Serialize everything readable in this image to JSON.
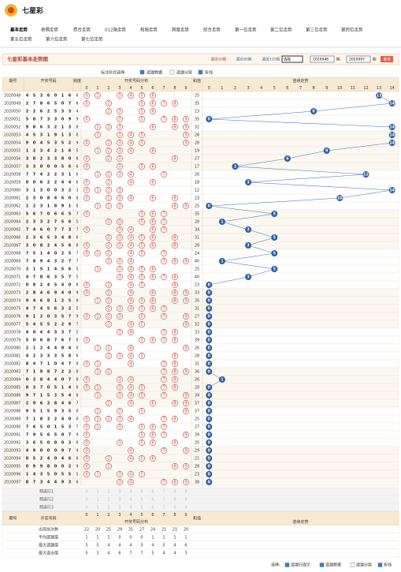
{
  "header": {
    "title": "七星彩"
  },
  "nav": [
    "基本走势",
    "奇偶走势",
    "质合走势",
    "012路走势",
    "和值走势",
    "跨度走势",
    "综合走势",
    "第一位走势",
    "第二位走势",
    "第三位走势",
    "第四位走势",
    "第五位走势",
    "第六位走势",
    "第七位走势"
  ],
  "toolbar": {
    "title": "七星彩基本走势图",
    "recent": [
      "最近50期",
      "最近80期",
      "最近120期"
    ],
    "select": "选择",
    "from": "2020048",
    "from_unit": "期",
    "to": "2020097",
    "to_unit": "期",
    "query": "查询"
  },
  "options": {
    "label": "标注形式选择:",
    "items": [
      "遗漏数据",
      "遗漏分层",
      "折线"
    ]
  },
  "table": {
    "headers": {
      "issue": "期号",
      "nums": "开奖号码",
      "span": "跨度",
      "dist": "开奖号码分布",
      "sum": "和值",
      "trend": "连续走势"
    },
    "digits": [
      0,
      1,
      2,
      3,
      4,
      5,
      6,
      7,
      8,
      9
    ],
    "trend_cols": [
      0,
      1,
      2,
      3,
      4,
      5,
      6,
      7,
      8,
      9,
      10,
      11,
      12,
      13,
      14
    ],
    "rows": [
      {
        "issue": "2020048",
        "nums": [
          4,
          5,
          3,
          6,
          0,
          1,
          6
        ],
        "span": 6,
        "sum": 25,
        "trend": 13
      },
      {
        "issue": "2020049",
        "nums": [
          2,
          7,
          8,
          6,
          5,
          0,
          7
        ],
        "span": 8,
        "sum": 35,
        "trend": 14
      },
      {
        "issue": "2020050",
        "nums": [
          2,
          2,
          6,
          2,
          5,
          3,
          3
        ],
        "span": 4,
        "sum": 23,
        "trend": 8
      },
      {
        "issue": "2020051",
        "nums": [
          5,
          8,
          7,
          3,
          3,
          0,
          9
        ],
        "span": 9,
        "sum": 35,
        "trend": 0
      },
      {
        "issue": "2020052",
        "nums": [
          9,
          8,
          6,
          3,
          2,
          1,
          3
        ],
        "span": 8,
        "sum": 32,
        "trend": 14
      },
      {
        "issue": "2020053",
        "nums": [
          4,
          5,
          3,
          1,
          9,
          1,
          3
        ],
        "span": 8,
        "sum": 26,
        "trend": 14
      },
      {
        "issue": "2020054",
        "nums": [
          9,
          0,
          4,
          5,
          3,
          5,
          2
        ],
        "span": 9,
        "sum": 28,
        "trend": 14
      },
      {
        "issue": "2020055",
        "nums": [
          1,
          2,
          3,
          4,
          2,
          1,
          6
        ],
        "span": 5,
        "sum": 19,
        "trend": 9
      },
      {
        "issue": "2020056",
        "nums": [
          3,
          8,
          2,
          3,
          3,
          8,
          0
        ],
        "span": 8,
        "sum": 27,
        "trend": 6
      },
      {
        "issue": "2020057",
        "nums": [
          3,
          3,
          0,
          0,
          0,
          5,
          6
        ],
        "span": 6,
        "sum": 17,
        "trend": 2
      },
      {
        "issue": "2020058",
        "nums": [
          7,
          7,
          4,
          2,
          2,
          3,
          1
        ],
        "span": 6,
        "sum": 26,
        "trend": 12
      },
      {
        "issue": "2020059",
        "nums": [
          0,
          0,
          6,
          2,
          2,
          4,
          4
        ],
        "span": 6,
        "sum": 18,
        "trend": 3
      },
      {
        "issue": "2020060",
        "nums": [
          3,
          1,
          3,
          0,
          0,
          3,
          2
        ],
        "span": 3,
        "sum": 12,
        "trend": 14
      },
      {
        "issue": "2020061",
        "nums": [
          2,
          3,
          0,
          8,
          4,
          6,
          0
        ],
        "span": 8,
        "sum": 23,
        "trend": 10
      },
      {
        "issue": "2020062",
        "nums": [
          1,
          2,
          3,
          1,
          8,
          9,
          1
        ],
        "span": 8,
        "sum": 25,
        "trend": 0
      },
      {
        "issue": "2020063",
        "nums": [
          5,
          6,
          7,
          0,
          6,
          6,
          5
        ],
        "span": 7,
        "sum": 35,
        "trend": 5
      },
      {
        "issue": "2020064",
        "nums": [
          2,
          3,
          3,
          2,
          7,
          5,
          6
        ],
        "span": 5,
        "sum": 28,
        "trend": 1
      },
      {
        "issue": "2020065",
        "nums": [
          7,
          4,
          6,
          0,
          7,
          7,
          3
        ],
        "span": 7,
        "sum": 34,
        "trend": 3
      },
      {
        "issue": "2020066",
        "nums": [
          2,
          3,
          6,
          5,
          3,
          4,
          8
        ],
        "span": 6,
        "sum": 31,
        "trend": 5
      },
      {
        "issue": "2020067",
        "nums": [
          3,
          0,
          8,
          2,
          4,
          5,
          6
        ],
        "span": 8,
        "sum": 28,
        "trend": 3
      },
      {
        "issue": "2020068",
        "nums": [
          7,
          5,
          1,
          4,
          0,
          2,
          5
        ],
        "span": 7,
        "sum": 24,
        "trend": 5
      },
      {
        "issue": "2020069",
        "nums": [
          7,
          8,
          9,
          4,
          3,
          2,
          7
        ],
        "span": 7,
        "sum": 40,
        "trend": 1
      },
      {
        "issue": "2020070",
        "nums": [
          3,
          1,
          5,
          1,
          4,
          5,
          6
        ],
        "span": 5,
        "sum": 25,
        "trend": 5
      },
      {
        "issue": "2020071",
        "nums": [
          4,
          7,
          8,
          6,
          3,
          5,
          7
        ],
        "span": 5,
        "sum": 40,
        "trend": 3
      },
      {
        "issue": "2020072",
        "nums": [
          0,
          8,
          2,
          4,
          5,
          4,
          0
        ],
        "span": 8,
        "sum": 23,
        "trend": 0
      },
      {
        "issue": "2020073",
        "nums": [
          2,
          8,
          4,
          6,
          9,
          4,
          0
        ],
        "span": 9,
        "sum": 33,
        "trend": 0
      },
      {
        "issue": "2020074",
        "nums": [
          9,
          4,
          6,
          8,
          1,
          2,
          5
        ],
        "span": 8,
        "sum": 35,
        "trend": 0
      },
      {
        "issue": "2020075",
        "nums": [
          4,
          7,
          4,
          5,
          6,
          3,
          2
        ],
        "span": 5,
        "sum": 31,
        "trend": 0
      },
      {
        "issue": "2020076",
        "nums": [
          9,
          1,
          2,
          0,
          3,
          5,
          7
        ],
        "span": 9,
        "sum": 27,
        "trend": 0
      },
      {
        "issue": "2020077",
        "nums": [
          5,
          4,
          5,
          5,
          2,
          2,
          9
        ],
        "span": 7,
        "sum": 32,
        "trend": 0
      },
      {
        "issue": "2020078",
        "nums": [
          4,
          8,
          4,
          4,
          3,
          3,
          7
        ],
        "span": 5,
        "sum": 33,
        "trend": 0
      },
      {
        "issue": "2020079",
        "nums": [
          5,
          0,
          6,
          8,
          7,
          6,
          7
        ],
        "span": 8,
        "sum": 39,
        "trend": 0
      },
      {
        "issue": "2020080",
        "nums": [
          2,
          1,
          2,
          4,
          4,
          9,
          4
        ],
        "span": 8,
        "sum": 26,
        "trend": 0
      },
      {
        "issue": "2020081",
        "nums": [
          4,
          2,
          3,
          3,
          3,
          5,
          8
        ],
        "span": 6,
        "sum": 28,
        "trend": 0
      },
      {
        "issue": "2020082",
        "nums": [
          8,
          4,
          7,
          1,
          0,
          4,
          7
        ],
        "span": 8,
        "sum": 31,
        "trend": 0
      },
      {
        "issue": "2020083",
        "nums": [
          7,
          1,
          9,
          8,
          7,
          2,
          2
        ],
        "span": 8,
        "sum": 36,
        "trend": 0
      },
      {
        "issue": "2020084",
        "nums": [
          0,
          3,
          8,
          4,
          4,
          0,
          7
        ],
        "span": 8,
        "sum": 26,
        "trend": 1
      },
      {
        "issue": "2020085",
        "nums": [
          8,
          3,
          7,
          0,
          5,
          1,
          4
        ],
        "span": 8,
        "sum": 28,
        "trend": 0
      },
      {
        "issue": "2020086",
        "nums": [
          9,
          7,
          1,
          5,
          3,
          5,
          4
        ],
        "span": 8,
        "sum": 34,
        "trend": 0
      },
      {
        "issue": "2020087",
        "nums": [
          2,
          9,
          6,
          2,
          8,
          4,
          6
        ],
        "span": 7,
        "sum": 37,
        "trend": 0
      },
      {
        "issue": "2020088",
        "nums": [
          9,
          5,
          1,
          5,
          9,
          3,
          5
        ],
        "span": 8,
        "sum": 37,
        "trend": 0
      },
      {
        "issue": "2020089",
        "nums": [
          7,
          1,
          8,
          3,
          2,
          4,
          0
        ],
        "span": 8,
        "sum": 25,
        "trend": 0
      },
      {
        "issue": "2020090",
        "nums": [
          7,
          6,
          5,
          0,
          1,
          5,
          3
        ],
        "span": 7,
        "sum": 27,
        "trend": 0
      },
      {
        "issue": "2020091",
        "nums": [
          7,
          9,
          5,
          6,
          5,
          0,
          7
        ],
        "span": 9,
        "sum": 39,
        "trend": 0
      },
      {
        "issue": "2020092",
        "nums": [
          3,
          6,
          5,
          0,
          8,
          0,
          3
        ],
        "span": 8,
        "sum": 25,
        "trend": 0
      },
      {
        "issue": "2020093",
        "nums": [
          4,
          9,
          0,
          0,
          0,
          9,
          7
        ],
        "span": 9,
        "sum": 29,
        "trend": 0
      },
      {
        "issue": "2020094",
        "nums": [
          0,
          5,
          2,
          4,
          0,
          4,
          6
        ],
        "span": 6,
        "sum": 21,
        "trend": 0
      },
      {
        "issue": "2020095",
        "nums": [
          0,
          9,
          9,
          8,
          0,
          0,
          2
        ],
        "span": 9,
        "sum": 28,
        "trend": 0
      },
      {
        "issue": "2020096",
        "nums": [
          1,
          4,
          3,
          5,
          0,
          5,
          5
        ],
        "span": 5,
        "sum": 23,
        "trend": 0
      },
      {
        "issue": "2020097",
        "nums": [
          8,
          7,
          3,
          4,
          4,
          9,
          3
        ],
        "span": 6,
        "sum": 38,
        "trend": 0
      }
    ],
    "preselect": [
      "预选行1",
      "预选行2",
      "预选行3"
    ],
    "stats": [
      {
        "label": "出现总次数",
        "values": [
          22,
          20,
          25,
          29,
          31,
          27,
          24,
          21,
          21,
          20
        ]
      },
      {
        "label": "平均遗漏值",
        "values": [
          1,
          1,
          1,
          0,
          0,
          0,
          1,
          1,
          1,
          1
        ]
      },
      {
        "label": "最大遗漏值",
        "values": [
          5,
          5,
          4,
          4,
          4,
          5,
          4,
          5,
          4,
          6
        ]
      },
      {
        "label": "最大连出值",
        "values": [
          5,
          3,
          4,
          6,
          7,
          7,
          5,
          4,
          4,
          3
        ]
      }
    ]
  },
  "footer": {
    "label": "选择:",
    "items": [
      "遗漏行提示",
      "遗漏数据",
      "遗漏分层",
      "折线"
    ]
  }
}
